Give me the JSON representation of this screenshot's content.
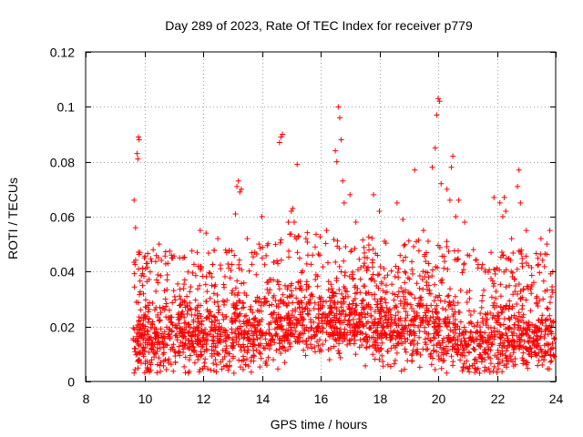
{
  "chart_data": {
    "type": "scatter",
    "title": "Day 289 of 2023, Rate Of TEC Index for receiver p779",
    "xlabel": "GPS time / hours",
    "ylabel": "ROTI / TECUs",
    "xlim": [
      8,
      24
    ],
    "ylim": [
      0,
      0.12
    ],
    "xticks": [
      8,
      10,
      12,
      14,
      16,
      18,
      20,
      22,
      24
    ],
    "yticks": [
      0,
      0.02,
      0.04,
      0.06,
      0.08,
      0.1,
      0.12
    ],
    "xtick_labels": [
      "8",
      "10",
      "12",
      "14",
      "16",
      "18",
      "20",
      "22",
      "24"
    ],
    "ytick_labels": [
      "0",
      "0.02",
      "0.04",
      "0.06",
      "0.08",
      "0.1",
      "0.12"
    ],
    "grid": true,
    "marker": "+",
    "color": "#ff0000",
    "series": [
      {
        "name": "ROTI",
        "x": [
          9.65,
          9.7,
          9.75,
          9.78,
          9.8,
          9.82,
          9.85,
          10.0,
          10.1,
          10.3,
          10.5,
          10.8,
          11.2,
          11.8,
          11.9,
          12.1,
          12.5,
          13.1,
          13.15,
          13.2,
          13.25,
          13.3,
          13.5,
          13.9,
          14.0,
          14.6,
          14.65,
          14.7,
          14.9,
          15.0,
          15.05,
          15.1,
          15.2,
          15.25,
          15.5,
          16.2,
          16.5,
          16.55,
          16.6,
          16.65,
          16.7,
          16.75,
          16.8,
          17.0,
          17.2,
          17.8,
          18.0,
          18.6,
          18.8,
          19.2,
          19.5,
          19.8,
          19.9,
          19.95,
          20.0,
          20.05,
          20.1,
          20.3,
          20.4,
          20.45,
          20.5,
          20.6,
          20.7,
          20.9,
          21.2,
          21.8,
          21.9,
          22.1,
          22.2,
          22.25,
          22.3,
          22.5,
          22.7,
          22.75,
          22.8,
          23.0,
          23.5,
          23.7,
          23.8,
          23.9
        ],
        "y": [
          0.066,
          0.056,
          0.083,
          0.081,
          0.089,
          0.088,
          0.047,
          0.045,
          0.043,
          0.048,
          0.05,
          0.043,
          0.045,
          0.047,
          0.055,
          0.054,
          0.052,
          0.061,
          0.071,
          0.073,
          0.069,
          0.07,
          0.052,
          0.05,
          0.06,
          0.087,
          0.089,
          0.09,
          0.058,
          0.062,
          0.063,
          0.058,
          0.079,
          0.053,
          0.052,
          0.055,
          0.084,
          0.08,
          0.1,
          0.096,
          0.088,
          0.073,
          0.065,
          0.068,
          0.058,
          0.068,
          0.062,
          0.065,
          0.059,
          0.077,
          0.055,
          0.078,
          0.085,
          0.097,
          0.103,
          0.102,
          0.072,
          0.07,
          0.066,
          0.078,
          0.082,
          0.06,
          0.066,
          0.058,
          0.048,
          0.047,
          0.067,
          0.065,
          0.06,
          0.067,
          0.062,
          0.052,
          0.071,
          0.077,
          0.065,
          0.055,
          0.052,
          0.05,
          0.055,
          0.04
        ]
      }
    ]
  }
}
